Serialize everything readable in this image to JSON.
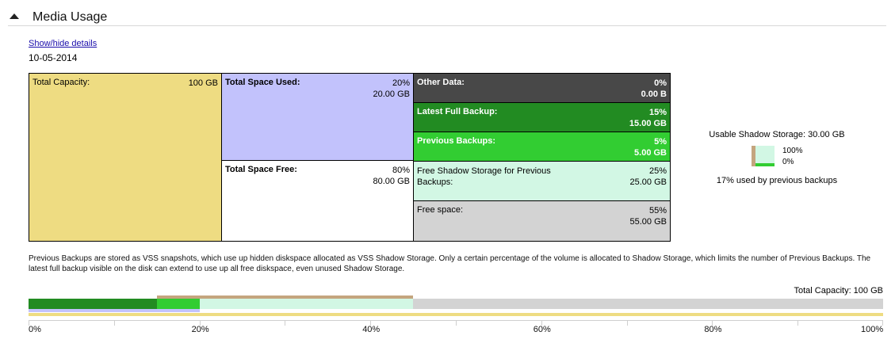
{
  "section": {
    "title": "Media Usage",
    "toggle_icon": "triangle-up-icon",
    "details_link": "Show/hide details",
    "date": "10-05-2014"
  },
  "grid": {
    "total_capacity": {
      "label": "Total Capacity:",
      "value": "100 GB"
    },
    "total_used": {
      "label": "Total Space Used:",
      "percent": "20%",
      "amount": "20.00 GB"
    },
    "total_free": {
      "label": "Total Space Free:",
      "percent": "80%",
      "amount": "80.00 GB"
    },
    "other_data": {
      "label": "Other Data:",
      "percent": "0%",
      "amount": "0.00 B"
    },
    "latest_full": {
      "label": "Latest Full Backup:",
      "percent": "15%",
      "amount": "15.00 GB"
    },
    "previous": {
      "label": "Previous Backups:",
      "percent": "5%",
      "amount": "5.00 GB"
    },
    "free_shadow": {
      "label": "Free Shadow Storage for Previous Backups:",
      "percent": "25%",
      "amount": "25.00 GB"
    },
    "free_space": {
      "label": "Free space:",
      "percent": "55%",
      "amount": "55.00 GB"
    }
  },
  "shadow_panel": {
    "title": "Usable Shadow Storage: 30.00 GB",
    "label_max": "100%",
    "label_min": "0%",
    "used_fraction": 0.17,
    "note": "17% used by previous backups"
  },
  "description": "Previous Backups are stored as VSS snapshots, which use up hidden diskspace allocated as VSS Shadow Storage. Only a certain percentage of the volume is allocated to Shadow Storage, which limits the number of Previous Backups. The latest full backup visible on the disk can extend to use up all free diskspace, even unused Shadow Storage.",
  "usage_bar": {
    "total_label": "Total Capacity: 100 GB",
    "segments_percent": {
      "other_data": 0,
      "latest_full": 15,
      "previous": 5,
      "free_shadow": 25,
      "free_space": 55,
      "shadow_storage": 30,
      "used": 20,
      "capacity": 100
    },
    "axis_labels": [
      "0%",
      "20%",
      "40%",
      "60%",
      "80%",
      "100%"
    ]
  },
  "colors": {
    "capacity": "#eedc82",
    "used": "#c2c2fc",
    "other_data": "#484848",
    "latest_full": "#228b22",
    "previous": "#32cd32",
    "free_shadow": "#d2f7e4",
    "free_space": "#d3d3d3",
    "shadow_outline": "#c4a57e"
  }
}
